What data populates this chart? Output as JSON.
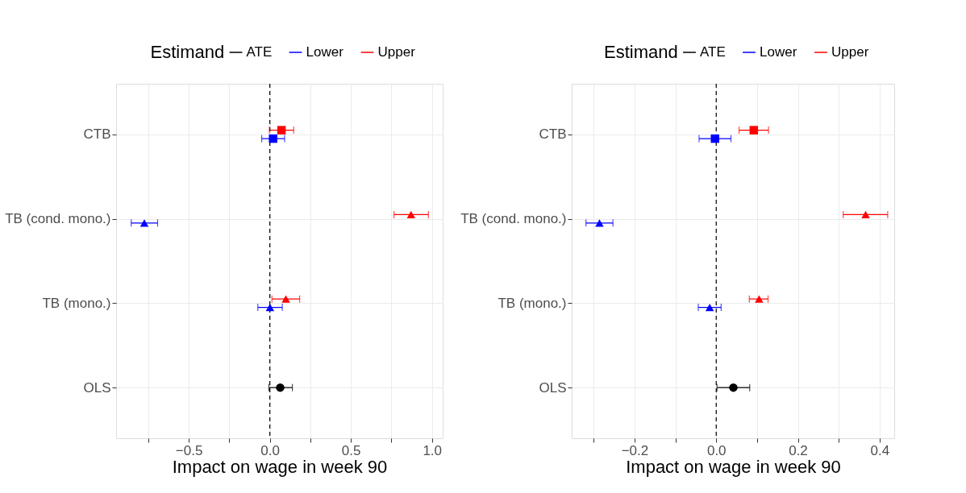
{
  "chart_data": [
    {
      "type": "scatter",
      "orientation": "horizontal",
      "xlabel": "Impact on wage in week 90",
      "legend_title": "Estimand",
      "legend": "top",
      "grid": true,
      "categories": [
        "CTB",
        "TB (cond. mono.)",
        "TB (mono.)",
        "OLS"
      ],
      "marker": [
        "square",
        "triangle",
        "triangle",
        "circle"
      ],
      "series": [
        {
          "name": "ATE",
          "color": "#000000",
          "values": [
            null,
            null,
            null,
            0.064
          ],
          "errors": [
            null,
            null,
            null,
            [
              -0.006,
              0.139
            ]
          ]
        },
        {
          "name": "Lower",
          "color": "#0000ff",
          "values": [
            0.02,
            -0.774,
            0.001,
            null
          ],
          "errors": [
            [
              -0.05,
              0.091
            ],
            [
              -0.855,
              -0.692
            ],
            [
              -0.074,
              0.077
            ],
            null
          ]
        },
        {
          "name": "Upper",
          "color": "#ff0000",
          "values": [
            0.072,
            0.871,
            0.099,
            null
          ],
          "errors": [
            [
              -0.003,
              0.147
            ],
            [
              0.766,
              0.978
            ],
            [
              0.013,
              0.184
            ],
            null
          ]
        }
      ],
      "xlim": [
        -0.948,
        1.066
      ],
      "xticks": [
        {
          "value": -0.75,
          "label": null
        },
        {
          "value": -0.5,
          "label": "−0.5"
        },
        {
          "value": -0.25,
          "label": null
        },
        {
          "value": 0,
          "label": "0.0"
        },
        {
          "value": 0.25,
          "label": null
        },
        {
          "value": 0.5,
          "label": "0.5"
        },
        {
          "value": 0.75,
          "label": null
        },
        {
          "value": 1.0,
          "label": "1.0"
        }
      ],
      "ref_lines": [
        {
          "axis": "x",
          "value": 0,
          "color": "#000000",
          "line_style": "dashed"
        }
      ]
    },
    {
      "type": "scatter",
      "orientation": "horizontal",
      "xlabel": "Impact on wage in week 90",
      "legend_title": "Estimand",
      "legend": "top",
      "grid": true,
      "categories": [
        "CTB",
        "TB (cond. mono.)",
        "TB (mono.)",
        "OLS"
      ],
      "marker": [
        "square",
        "triangle",
        "triangle",
        "circle"
      ],
      "series": [
        {
          "name": "ATE",
          "color": "#000000",
          "values": [
            null,
            null,
            null,
            0.042
          ],
          "errors": [
            null,
            null,
            null,
            [
              0.002,
              0.082
            ]
          ]
        },
        {
          "name": "Lower",
          "color": "#0000ff",
          "values": [
            -0.003,
            -0.286,
            -0.016,
            null
          ],
          "errors": [
            [
              -0.042,
              0.036
            ],
            [
              -0.319,
              -0.253
            ],
            [
              -0.044,
              0.012
            ],
            null
          ]
        },
        {
          "name": "Upper",
          "color": "#ff0000",
          "values": [
            0.092,
            0.366,
            0.105,
            null
          ],
          "errors": [
            [
              0.056,
              0.128
            ],
            [
              0.311,
              0.42
            ],
            [
              0.081,
              0.127
            ],
            null
          ]
        }
      ],
      "xlim": [
        -0.354,
        0.436
      ],
      "xticks": [
        {
          "value": -0.3,
          "label": null
        },
        {
          "value": -0.2,
          "label": "−0.2"
        },
        {
          "value": -0.1,
          "label": null
        },
        {
          "value": 0,
          "label": "0.0"
        },
        {
          "value": 0.1,
          "label": null
        },
        {
          "value": 0.2,
          "label": "0.2"
        },
        {
          "value": 0.3,
          "label": null
        },
        {
          "value": 0.4,
          "label": "0.4"
        }
      ],
      "ref_lines": [
        {
          "axis": "x",
          "value": 0,
          "color": "#000000",
          "line_style": "dashed"
        }
      ]
    }
  ]
}
